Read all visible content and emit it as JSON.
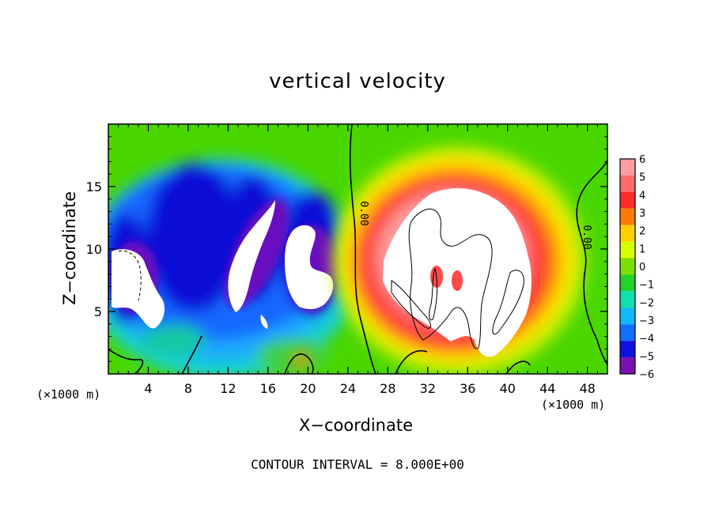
{
  "chart_data": {
    "type": "heatmap",
    "title": "vertical velocity",
    "xlabel": "X−coordinate",
    "ylabel": "Z−coordinate",
    "x_unit_left": "(×1000 m)",
    "x_unit_right": "(×1000 m)",
    "xlim": [
      0,
      50
    ],
    "ylim": [
      0,
      20
    ],
    "x_ticks": [
      4,
      8,
      12,
      16,
      20,
      24,
      28,
      32,
      36,
      40,
      44,
      48
    ],
    "y_ticks": [
      5,
      10,
      15
    ],
    "footer": "CONTOUR INTERVAL = 8.000E+00",
    "contour_labels": [
      "0.00",
      "0.00"
    ],
    "colorbar": {
      "levels": [
        6,
        5,
        4,
        3,
        2,
        1,
        0,
        -1,
        -2,
        -3,
        -4,
        -5,
        -6
      ],
      "labels": [
        "6",
        "5",
        "4",
        "3",
        "2",
        "1",
        "0",
        "−1",
        "−2",
        "−3",
        "−4",
        "−5",
        "−6"
      ],
      "colors": [
        "#ff9e9e",
        "#ff6a6a",
        "#ff2a2a",
        "#ff7a00",
        "#ffd000",
        "#d8ff00",
        "#7ce000",
        "#22d42a",
        "#10e0b0",
        "#10b8ff",
        "#1070ff",
        "#1010e0",
        "#7a10b0"
      ]
    },
    "features": [
      {
        "name": "downdraft-region",
        "x_range": [
          0,
          24
        ],
        "value": "negative (blue), strong cores beyond −6"
      },
      {
        "name": "updraft-region",
        "x_range": [
          26,
          46
        ],
        "value": "positive (red), core beyond +6"
      }
    ]
  }
}
